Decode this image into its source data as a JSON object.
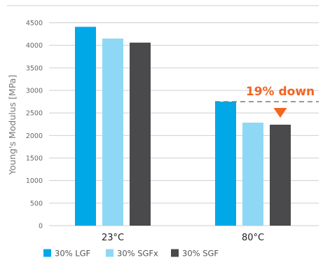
{
  "colors": {
    "lgf": "#00a8e8",
    "sgfx": "#8fd8f5",
    "sgf": "#4a4a4c",
    "annotation": "#f26522",
    "grid": "#cfcfcf",
    "dashed": "#777777",
    "top_rule": "#cfcfcf"
  },
  "chart_data": {
    "type": "bar",
    "categories": [
      "23°C",
      "80°C"
    ],
    "series": [
      {
        "name": "30% LGF",
        "values": [
          4410,
          2750
        ],
        "color_key": "lgf"
      },
      {
        "name": "30% SGFx",
        "values": [
          4150,
          2285
        ],
        "color_key": "sgfx"
      },
      {
        "name": "30% SGF",
        "values": [
          4060,
          2240
        ],
        "color_key": "sgf"
      }
    ],
    "ylabel": "Young's Modulus [MPa]",
    "xlabel": "",
    "ylim": [
      0,
      4500
    ],
    "yticks": [
      0,
      500,
      1000,
      1500,
      2000,
      2500,
      3000,
      3500,
      4000,
      4500
    ],
    "grid": true,
    "legend_position": "bottom-left",
    "annotation": {
      "text": "19% down",
      "reference_value": 2750,
      "marker": "down-triangle",
      "category": "80°C"
    }
  }
}
